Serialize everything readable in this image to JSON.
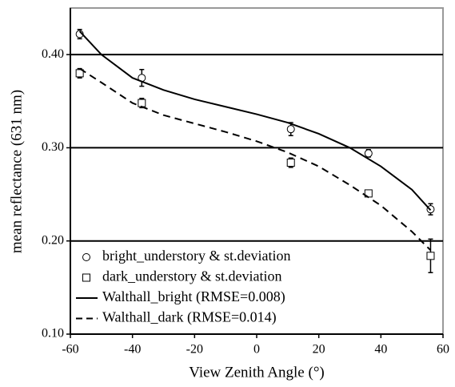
{
  "chart_data": {
    "type": "scatter-line",
    "x_label": "View Zenith Angle (°)",
    "y_label": "mean reflectance (631 nm)",
    "xlim": [
      -60,
      60
    ],
    "xticks": [
      -60,
      -40,
      -20,
      0,
      20,
      40,
      60
    ],
    "ylim": [
      0.1,
      0.45
    ],
    "yticks": [
      {
        "value": 0.1,
        "label": "0.10"
      },
      {
        "value": 0.2,
        "label": "0.20"
      },
      {
        "value": 0.3,
        "label": "0.30"
      },
      {
        "value": 0.4,
        "label": "0.40"
      }
    ],
    "grid": true,
    "legend": "lower-left",
    "series": [
      {
        "name": "bright_understory & st.deviation",
        "kind": "points",
        "marker": "circle",
        "color": "#000000",
        "x": [
          -57,
          -37,
          11,
          36,
          56
        ],
        "values": [
          0.422,
          0.375,
          0.32,
          0.294,
          0.234
        ],
        "errors": [
          0.005,
          0.009,
          0.007,
          0.004,
          0.006
        ]
      },
      {
        "name": "dark_understory & st.deviation",
        "kind": "points",
        "marker": "square",
        "color": "#000000",
        "x": [
          -57,
          -37,
          11,
          36,
          56
        ],
        "values": [
          0.38,
          0.348,
          0.284,
          0.251,
          0.184
        ],
        "errors": [
          0.005,
          0.005,
          0.005,
          0.003,
          0.018
        ]
      },
      {
        "name": "Walthall_bright (RMSE=0.008)",
        "kind": "line",
        "dash": false,
        "color": "#000000",
        "x": [
          -57,
          -50,
          -40,
          -30,
          -20,
          -10,
          0,
          10,
          20,
          30,
          40,
          50,
          56
        ],
        "values": [
          0.425,
          0.4,
          0.375,
          0.362,
          0.352,
          0.344,
          0.336,
          0.327,
          0.315,
          0.3,
          0.28,
          0.255,
          0.233
        ]
      },
      {
        "name": "Walthall_dark (RMSE=0.014)",
        "kind": "line",
        "dash": true,
        "color": "#000000",
        "x": [
          -57,
          -50,
          -40,
          -30,
          -20,
          -10,
          0,
          10,
          20,
          30,
          40,
          50,
          56
        ],
        "values": [
          0.385,
          0.37,
          0.348,
          0.335,
          0.326,
          0.317,
          0.307,
          0.295,
          0.28,
          0.26,
          0.238,
          0.21,
          0.19
        ]
      }
    ]
  }
}
